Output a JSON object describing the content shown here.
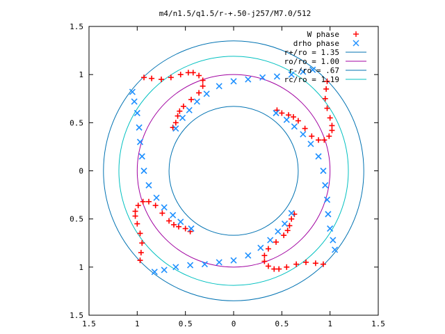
{
  "chart_data": {
    "type": "scatter",
    "title": "m4/n1.5/q1.5/r-+.50-j257/M7.0/512",
    "xlabel": "",
    "ylabel": "",
    "xlim": [
      -1.5,
      1.5
    ],
    "ylim": [
      -1.5,
      1.5
    ],
    "x_ticks": [
      -1.5,
      -1,
      -0.5,
      0,
      0.5,
      1,
      1.5
    ],
    "y_ticks": [
      -1.5,
      -1,
      -0.5,
      0,
      0.5,
      1,
      1.5
    ],
    "x_tick_labels": [
      "1.5",
      "1",
      "0.5",
      "0",
      "0.5",
      "1",
      "1.5"
    ],
    "y_tick_labels": [
      "1.5",
      "1",
      "0.5",
      "0",
      "0.5",
      "1",
      "1.5"
    ],
    "grid": false,
    "legend_position": "top-right",
    "symmetry": 4,
    "series": [
      {
        "name": "W phase",
        "marker": "+",
        "color": "#ff0000",
        "points": [
          [
            -0.93,
            0.97
          ],
          [
            -0.85,
            0.96
          ],
          [
            -0.75,
            0.95
          ],
          [
            -0.65,
            0.97
          ],
          [
            -0.55,
            1.0
          ],
          [
            -0.47,
            1.02
          ],
          [
            -0.42,
            1.02
          ],
          [
            -0.36,
            0.99
          ],
          [
            -0.32,
            0.94
          ],
          [
            -0.32,
            0.88
          ],
          [
            -0.36,
            0.81
          ],
          [
            -0.44,
            0.74
          ],
          [
            -0.52,
            0.67
          ],
          [
            -0.56,
            0.62
          ],
          [
            -0.58,
            0.57
          ],
          [
            -0.6,
            0.5
          ],
          [
            -0.63,
            0.45
          ]
        ]
      },
      {
        "name": "drho phase",
        "marker": "x",
        "color": "#1e90ff",
        "points": [
          [
            -0.82,
            -1.05
          ],
          [
            -0.72,
            -1.03
          ],
          [
            -0.6,
            -1.0
          ],
          [
            -0.45,
            -0.98
          ],
          [
            -0.3,
            -0.97
          ],
          [
            -0.15,
            -0.95
          ],
          [
            0.0,
            -0.93
          ],
          [
            0.15,
            -0.88
          ],
          [
            0.28,
            -0.8
          ],
          [
            0.38,
            -0.72
          ],
          [
            0.46,
            -0.63
          ],
          [
            0.53,
            -0.55
          ],
          [
            0.6,
            -0.44
          ]
        ]
      },
      {
        "name": "r+/ro = 1.35",
        "type": "circle",
        "radius": 1.35,
        "color": "#0072b2"
      },
      {
        "name": "ro/ro = 1.00",
        "type": "circle",
        "radius": 1.0,
        "color": "#a000a0"
      },
      {
        "name": "r-/ro = .67",
        "type": "circle",
        "radius": 0.67,
        "color": "#0072b2"
      },
      {
        "name": "rc/ro = 1.19",
        "type": "circle",
        "radius": 1.19,
        "color": "#00c0c0"
      }
    ]
  }
}
